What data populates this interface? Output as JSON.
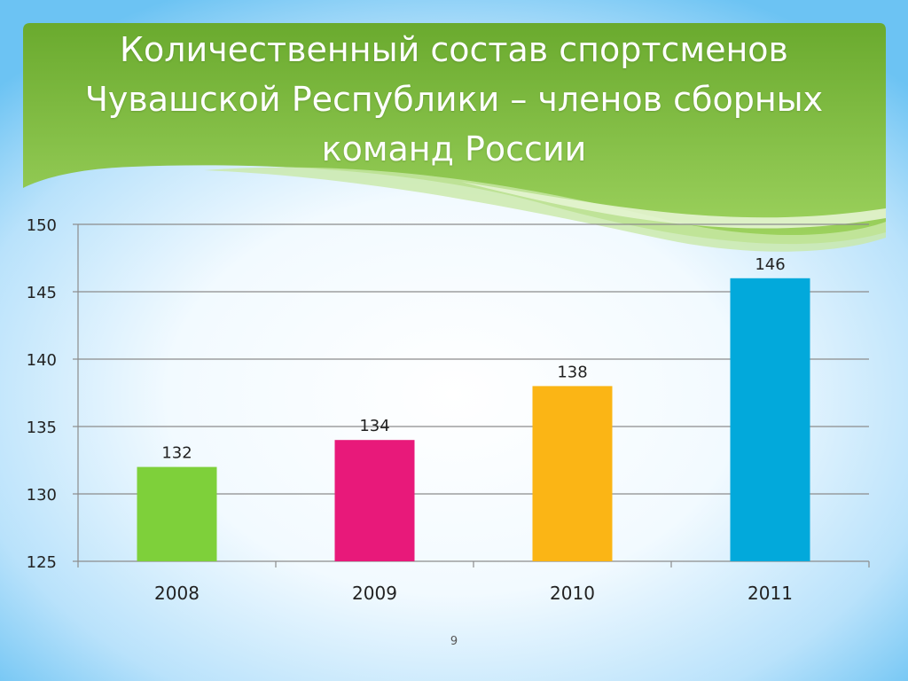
{
  "slide": {
    "title": "Количественный состав спортсменов Чувашской Республики – членов сборных команд России",
    "page_number": "9"
  },
  "colors": {
    "header_green": "#79b839",
    "bar_2008": "#7ed03a",
    "bar_2009": "#e8197a",
    "bar_2010": "#fbb515",
    "bar_2011": "#02a9db"
  },
  "chart_data": {
    "type": "bar",
    "title": "",
    "xlabel": "",
    "ylabel": "",
    "categories": [
      "2008",
      "2009",
      "2010",
      "2011"
    ],
    "values": [
      132,
      134,
      138,
      146
    ],
    "data_labels": [
      "132",
      "134",
      "138",
      "146"
    ],
    "bar_colors": [
      "#7ed03a",
      "#e8197a",
      "#fbb515",
      "#02a9db"
    ],
    "ylim": [
      125,
      150
    ],
    "yticks": [
      125,
      130,
      135,
      140,
      145,
      150
    ],
    "ytick_labels": [
      "125",
      "130",
      "135",
      "140",
      "145",
      "150"
    ],
    "grid": true,
    "legend": "none"
  }
}
